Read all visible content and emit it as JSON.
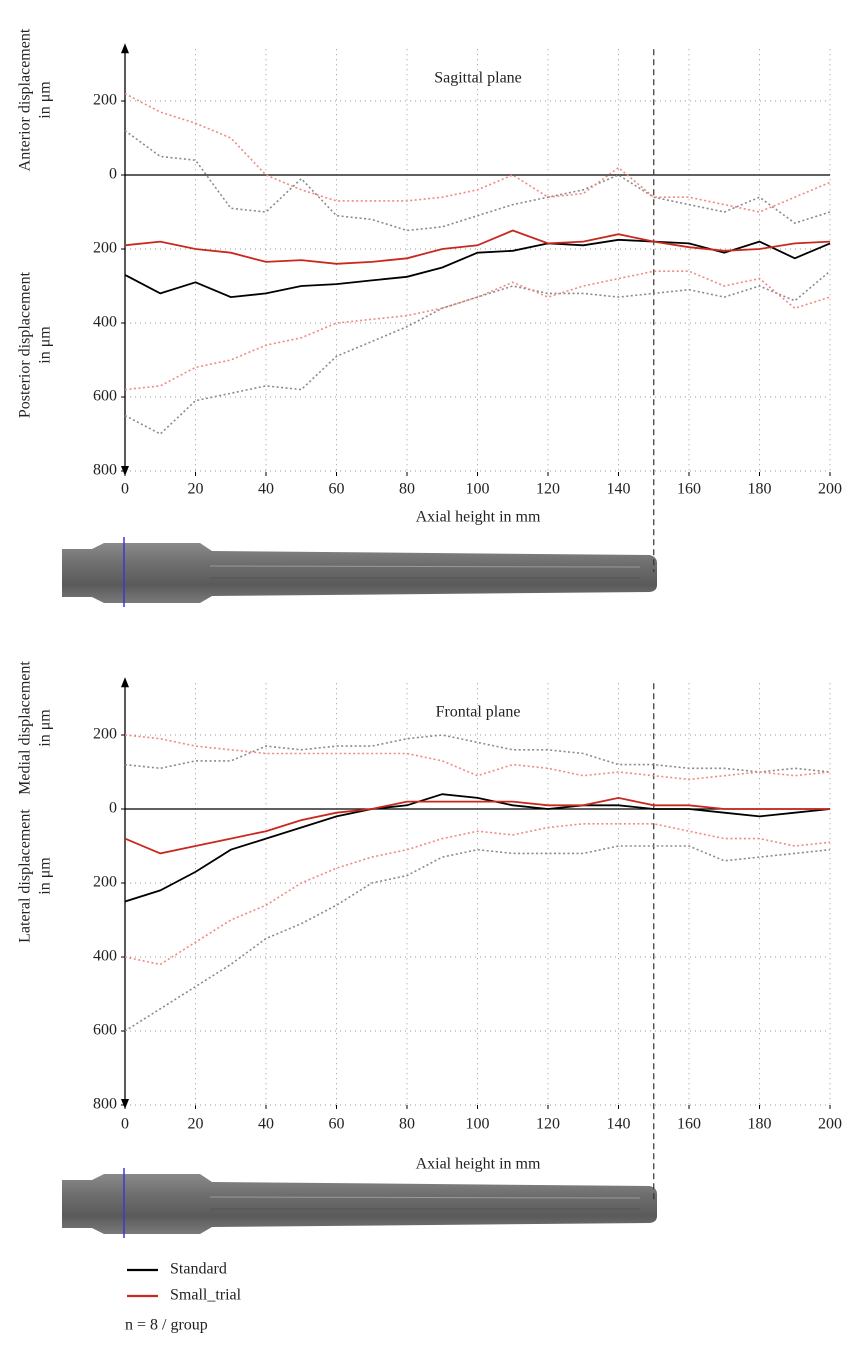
{
  "legend": {
    "series": [
      {
        "name": "Standard",
        "color": "#000000",
        "bound_color": "#8a8a8a"
      },
      {
        "name": "Small_trial",
        "color": "#c8281e",
        "bound_color": "#f08a80"
      }
    ],
    "note": "n = 8 / group"
  },
  "chart_data": [
    {
      "type": "line",
      "title": "Sagittal plane",
      "xlabel": "Axial height in mm",
      "y_label_upper": [
        "Anterior displacement",
        "in μm"
      ],
      "y_label_lower": [
        "Posterior displacement",
        "in μm"
      ],
      "x": [
        0,
        10,
        20,
        30,
        40,
        50,
        60,
        70,
        80,
        90,
        100,
        110,
        120,
        130,
        140,
        150,
        160,
        170,
        180,
        190,
        200
      ],
      "series": [
        {
          "values": [
            -270,
            -320,
            -290,
            -330,
            -320,
            -300,
            -295,
            -285,
            -275,
            -250,
            -210,
            -205,
            -185,
            -190,
            -175,
            -180,
            -185,
            -210,
            -180,
            -225,
            -185
          ],
          "upper": [
            120,
            50,
            40,
            -90,
            -100,
            -10,
            -110,
            -120,
            -150,
            -140,
            -110,
            -80,
            -60,
            -40,
            0,
            -60,
            -80,
            -100,
            -60,
            -130,
            -100
          ],
          "lower": [
            -650,
            -700,
            -610,
            -590,
            -570,
            -580,
            -490,
            -450,
            -410,
            -360,
            -330,
            -300,
            -320,
            -320,
            -330,
            -320,
            -310,
            -330,
            -300,
            -340,
            -260
          ]
        },
        {
          "values": [
            -190,
            -180,
            -200,
            -210,
            -235,
            -230,
            -240,
            -235,
            -225,
            -200,
            -190,
            -150,
            -185,
            -180,
            -160,
            -180,
            -195,
            -205,
            -200,
            -185,
            -180
          ],
          "upper": [
            220,
            170,
            140,
            100,
            0,
            -40,
            -70,
            -70,
            -70,
            -60,
            -40,
            0,
            -60,
            -50,
            20,
            -60,
            -60,
            -80,
            -100,
            -60,
            -20
          ],
          "lower": [
            -580,
            -570,
            -520,
            -500,
            -460,
            -440,
            -400,
            -390,
            -380,
            -360,
            -330,
            -290,
            -330,
            -300,
            -280,
            -260,
            -260,
            -300,
            -280,
            -360,
            -330
          ]
        }
      ],
      "xlim": [
        0,
        200
      ],
      "xticks": [
        0,
        20,
        40,
        60,
        80,
        100,
        120,
        140,
        160,
        180,
        200
      ],
      "ylim": [
        -800,
        340
      ],
      "yticks": [
        200,
        0,
        {
          "value": -200,
          "label": "200"
        },
        {
          "value": -400,
          "label": "400"
        },
        {
          "value": -600,
          "label": "600"
        },
        {
          "value": -800,
          "label": "800"
        }
      ],
      "vline": 150,
      "grid": true
    },
    {
      "type": "line",
      "title": "Frontal plane",
      "xlabel": "Axial height in mm",
      "y_label_upper": [
        "Medial displacement",
        "in μm"
      ],
      "y_label_lower": [
        "Lateral displacement",
        "in μm"
      ],
      "x": [
        0,
        10,
        20,
        30,
        40,
        50,
        60,
        70,
        80,
        90,
        100,
        110,
        120,
        130,
        140,
        150,
        160,
        170,
        180,
        190,
        200
      ],
      "series": [
        {
          "values": [
            -250,
            -220,
            -170,
            -110,
            -80,
            -50,
            -20,
            0,
            10,
            40,
            30,
            10,
            0,
            10,
            10,
            0,
            0,
            -10,
            -20,
            -10,
            0
          ],
          "upper": [
            120,
            110,
            130,
            130,
            170,
            160,
            170,
            170,
            190,
            200,
            180,
            160,
            160,
            150,
            120,
            120,
            110,
            110,
            100,
            110,
            100
          ],
          "lower": [
            -600,
            -540,
            -480,
            -420,
            -350,
            -310,
            -260,
            -200,
            -180,
            -130,
            -110,
            -120,
            -120,
            -120,
            -100,
            -100,
            -100,
            -140,
            -130,
            -120,
            -110
          ]
        },
        {
          "values": [
            -80,
            -120,
            -100,
            -80,
            -60,
            -30,
            -10,
            0,
            20,
            20,
            20,
            20,
            10,
            10,
            30,
            10,
            10,
            0,
            0,
            0,
            0
          ],
          "upper": [
            200,
            190,
            170,
            160,
            150,
            150,
            150,
            150,
            150,
            130,
            90,
            120,
            110,
            90,
            100,
            90,
            80,
            90,
            100,
            90,
            100
          ],
          "lower": [
            -400,
            -420,
            -360,
            -300,
            -260,
            -200,
            -160,
            -130,
            -110,
            -80,
            -60,
            -70,
            -50,
            -40,
            -40,
            -40,
            -60,
            -80,
            -80,
            -100,
            -90
          ]
        }
      ],
      "xlim": [
        0,
        200
      ],
      "xticks": [
        0,
        20,
        40,
        60,
        80,
        100,
        120,
        140,
        160,
        180,
        200
      ],
      "ylim": [
        -800,
        340
      ],
      "yticks": [
        200,
        0,
        {
          "value": -200,
          "label": "200"
        },
        {
          "value": -400,
          "label": "400"
        },
        {
          "value": -600,
          "label": "600"
        },
        {
          "value": -800,
          "label": "800"
        }
      ],
      "vline": 150,
      "grid": true
    }
  ]
}
